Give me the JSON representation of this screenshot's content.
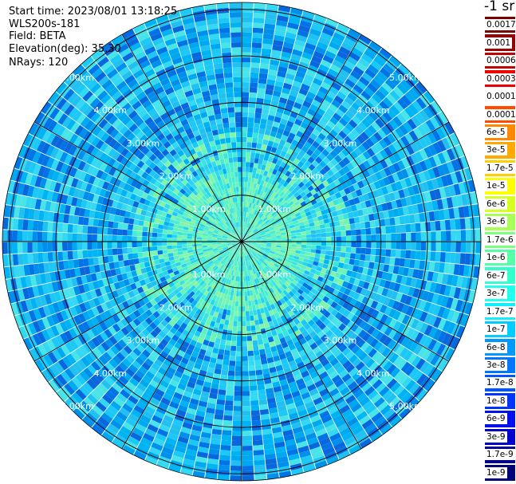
{
  "info": {
    "start_time": "Start time: 2023/08/01 13:18:25",
    "site": "WLS200s-181",
    "field": "Field: BETA",
    "elevation": "Elevation(deg): 35.30",
    "nrays": "NRays: 120"
  },
  "colorbar": {
    "unit_label": "-1 sr",
    "labels": [
      "0.0017",
      "0.001",
      "0.0006",
      "0.0003",
      "0.00017",
      "0.0001",
      "6e-5",
      "3e-5",
      "1.7e-5",
      "1e-5",
      "6e-6",
      "3e-6",
      "1.7e-6",
      "1e-6",
      "6e-7",
      "3e-7",
      "1.7e-7",
      "1e-7",
      "6e-8",
      "3e-8",
      "1.7e-8",
      "1e-8",
      "6e-9",
      "3e-9",
      "1.7e-9",
      "1e-9"
    ],
    "colors": [
      "#7a0000",
      "#9a0000",
      "#c40000",
      "#ee0000",
      "#ffffff",
      "#ff4a00",
      "#ff8800",
      "#ffaa00",
      "#ffd000",
      "#ffff00",
      "#d8ff22",
      "#a8ff55",
      "#7cff7c",
      "#55ffaa",
      "#33ffcc",
      "#22ffee",
      "#11eeff",
      "#00ccff",
      "#0099ff",
      "#0077ff",
      "#0055ff",
      "#0033ff",
      "#0011ee",
      "#0000cc",
      "#0000a0",
      "#000078"
    ]
  },
  "chart_data": {
    "type": "ppi",
    "field": "BETA",
    "elevation_deg": 35.3,
    "n_rays": 120,
    "range_rings_km": [
      1,
      2,
      3,
      4,
      5
    ],
    "ring_labels": [
      "1.00km",
      "2.00km",
      "3.00km",
      "4.00km",
      "5.00km"
    ],
    "spokes_deg": [
      0,
      30,
      60,
      90,
      120,
      150,
      180,
      210,
      240,
      270,
      300,
      330
    ]
  }
}
